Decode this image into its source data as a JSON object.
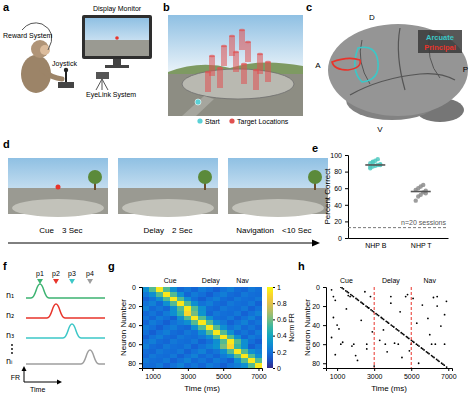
{
  "panel_labels": [
    "a",
    "b",
    "c",
    "d",
    "e",
    "f",
    "g",
    "h"
  ],
  "setup": {
    "reward": "Reward System",
    "monitor": "Display Monitor",
    "joystick": "Joystick",
    "eyelink": "EyeLink System"
  },
  "arena": {
    "start": "Start",
    "targets": "Target Locations"
  },
  "brain": {
    "directions": {
      "dorsal": "D",
      "anterior": "A",
      "posterior": "P",
      "ventral": "V"
    },
    "areas": [
      {
        "name": "Arcuate",
        "color": "#3cc7c7"
      },
      {
        "name": "Principal",
        "color": "#e8342b"
      }
    ]
  },
  "task": {
    "epochs": [
      {
        "name": "Cue",
        "duration": "3 Sec"
      },
      {
        "name": "Delay",
        "duration": "2 Sec"
      },
      {
        "name": "Navigation",
        "duration": "<10 Sec"
      }
    ]
  },
  "schematic": {
    "neurons": [
      "n₁",
      "n₂",
      "n₃",
      "nᵢ"
    ],
    "peaks": [
      "p1",
      "p2",
      "p3",
      "p4"
    ],
    "colors": [
      "#3cb371",
      "#e8342b",
      "#3cc7c7",
      "#9e9e9e"
    ],
    "y_label": "FR",
    "x_label": "Time"
  },
  "chart_data": [
    {
      "type": "scatter",
      "y_label": "Percent Correct",
      "categories": [
        "NHP B",
        "NHP T"
      ],
      "points": [
        [
          84,
          86,
          87,
          88,
          89,
          90,
          91,
          93,
          95,
          88,
          86,
          92
        ],
        [
          45,
          50,
          52,
          55,
          57,
          58,
          60,
          62,
          64,
          54
        ]
      ],
      "colors": [
        "#4fc9c0",
        "#8c8c8c"
      ],
      "means": [
        88,
        56
      ],
      "chance": 12.5,
      "chance_label": "n=20 sessions",
      "ylim": [
        0,
        100
      ],
      "yticks": [
        0,
        20,
        40,
        60,
        80,
        100
      ]
    },
    {
      "type": "heatmap",
      "x_label": "Time (ms)",
      "y_label": "Neuron Number",
      "x_bins": [
        400,
        800,
        1200,
        1600,
        2000,
        2400,
        2800,
        3200,
        3600,
        4000,
        4400,
        4800,
        5200,
        5600,
        6000,
        6400,
        6800,
        7200
      ],
      "y_bins": [
        0,
        5,
        10,
        15,
        20,
        25,
        30,
        35,
        40,
        45,
        50,
        55,
        60,
        65,
        70,
        75,
        80,
        85
      ],
      "cells": [
        [
          0.3,
          0.55,
          0.95,
          0.55,
          0.3,
          0.17,
          0.21,
          0.16,
          0.23,
          0.19,
          0.14,
          0.2,
          0.24,
          0.18,
          0.16,
          0.22,
          0.19
        ],
        [
          0.22,
          0.3,
          0.55,
          0.95,
          0.55,
          0.3,
          0.16,
          0.23,
          0.19,
          0.14,
          0.2,
          0.24,
          0.18,
          0.16,
          0.22,
          0.19,
          0.18
        ],
        [
          0.15,
          0.2,
          0.3,
          0.55,
          0.95,
          0.55,
          0.3,
          0.19,
          0.14,
          0.2,
          0.24,
          0.18,
          0.16,
          0.22,
          0.19,
          0.18,
          0.22
        ],
        [
          0.2,
          0.25,
          0.17,
          0.3,
          0.55,
          0.95,
          0.55,
          0.3,
          0.2,
          0.24,
          0.18,
          0.16,
          0.22,
          0.19,
          0.18,
          0.22,
          0.15
        ],
        [
          0.25,
          0.17,
          0.21,
          0.16,
          0.3,
          0.55,
          0.95,
          0.55,
          0.3,
          0.18,
          0.16,
          0.22,
          0.19,
          0.18,
          0.22,
          0.15,
          0.2
        ],
        [
          0.17,
          0.21,
          0.16,
          0.23,
          0.3,
          0.5,
          0.9,
          0.6,
          0.32,
          0.16,
          0.22,
          0.19,
          0.18,
          0.22,
          0.15,
          0.2,
          0.25
        ],
        [
          0.21,
          0.16,
          0.23,
          0.19,
          0.14,
          0.3,
          0.55,
          0.95,
          0.55,
          0.3,
          0.19,
          0.18,
          0.22,
          0.15,
          0.2,
          0.25,
          0.17
        ],
        [
          0.16,
          0.23,
          0.19,
          0.14,
          0.2,
          0.24,
          0.3,
          0.55,
          0.95,
          0.55,
          0.3,
          0.22,
          0.15,
          0.2,
          0.25,
          0.17,
          0.21
        ],
        [
          0.23,
          0.19,
          0.14,
          0.2,
          0.24,
          0.18,
          0.16,
          0.3,
          0.55,
          0.95,
          0.55,
          0.3,
          0.2,
          0.25,
          0.17,
          0.21,
          0.16
        ],
        [
          0.19,
          0.14,
          0.2,
          0.24,
          0.18,
          0.16,
          0.22,
          0.19,
          0.3,
          0.55,
          0.95,
          0.55,
          0.3,
          0.17,
          0.21,
          0.16,
          0.23
        ],
        [
          0.14,
          0.2,
          0.24,
          0.18,
          0.16,
          0.22,
          0.19,
          0.18,
          0.22,
          0.3,
          0.55,
          0.95,
          0.55,
          0.3,
          0.16,
          0.23,
          0.19
        ],
        [
          0.2,
          0.24,
          0.18,
          0.16,
          0.22,
          0.19,
          0.18,
          0.22,
          0.15,
          0.2,
          0.3,
          0.55,
          0.95,
          0.55,
          0.3,
          0.19,
          0.14
        ],
        [
          0.24,
          0.18,
          0.16,
          0.22,
          0.19,
          0.18,
          0.22,
          0.15,
          0.2,
          0.25,
          0.32,
          0.6,
          0.9,
          0.5,
          0.3,
          0.14,
          0.2
        ],
        [
          0.18,
          0.16,
          0.22,
          0.19,
          0.18,
          0.22,
          0.15,
          0.2,
          0.25,
          0.17,
          0.21,
          0.3,
          0.55,
          0.95,
          0.55,
          0.3,
          0.24
        ],
        [
          0.16,
          0.22,
          0.19,
          0.18,
          0.22,
          0.15,
          0.2,
          0.25,
          0.17,
          0.21,
          0.16,
          0.23,
          0.3,
          0.55,
          0.95,
          0.55,
          0.3
        ],
        [
          0.22,
          0.19,
          0.18,
          0.22,
          0.15,
          0.2,
          0.25,
          0.17,
          0.21,
          0.16,
          0.23,
          0.19,
          0.14,
          0.3,
          0.55,
          0.95,
          0.55
        ],
        [
          0.19,
          0.18,
          0.22,
          0.15,
          0.2,
          0.25,
          0.17,
          0.21,
          0.16,
          0.23,
          0.19,
          0.14,
          0.2,
          0.24,
          0.3,
          0.55,
          0.95
        ]
      ],
      "xlim": [
        400,
        7200
      ],
      "xticks": [
        1000,
        3000,
        5000,
        7000
      ],
      "ylim": [
        0,
        85
      ],
      "yticks": [
        0,
        20,
        40,
        60,
        80
      ],
      "colorbar": {
        "label": "Norm FR",
        "range": [
          0,
          1
        ],
        "ticks": [
          0,
          0.2,
          0.4,
          0.6,
          0.8,
          1
        ]
      },
      "annotations": [
        {
          "text": "Cue",
          "x": 2000
        },
        {
          "text": "Delay",
          "x": 4300
        },
        {
          "text": "Nav",
          "x": 6100
        }
      ]
    },
    {
      "type": "scatter",
      "marker": "dot",
      "x_label": "Time (ms)",
      "y_label": "Neuron Number",
      "x": [
        1200,
        1340,
        1470,
        1610,
        1740,
        1880,
        2020,
        2150,
        2290,
        2420,
        2560,
        2700,
        2830,
        2970,
        3100,
        3240,
        3380,
        3510,
        3650,
        3780,
        3920,
        4060,
        4190,
        4330,
        4460,
        4600,
        4740,
        4870,
        5010,
        5140,
        5280,
        5420,
        5550,
        5690,
        5820,
        5960,
        6100,
        6230,
        6370,
        6500,
        6640,
        6780,
        6910,
        1270,
        1540,
        1810,
        2090,
        2360,
        2630,
        2900,
        3170,
        3440,
        3720,
        3990,
        4260,
        4530,
        4800,
        5080,
        5350,
        5620,
        5890,
        6160,
        6440,
        6710,
        700,
        2500,
        4800,
        6200,
        900,
        3900,
        5600,
        1500,
        4400,
        6800,
        800,
        2300,
        5300,
        6600,
        1100,
        2900,
        6000,
        700,
        3300,
        4100,
        1800,
        2600,
        3700,
        900,
        4500,
        2100,
        5400,
        3000,
        1600,
        6900,
        2700,
        5900,
        3500,
        1300,
        4900,
        6400,
        2000,
        5100,
        1000,
        6300,
        1200,
        1900,
        2600,
        3600,
        4300,
        5000,
        6100,
        6800,
        800,
        1700,
        2800,
        3900,
        4700,
        6400
      ],
      "values": [
        0,
        2,
        4,
        6,
        8,
        10,
        12,
        14,
        16,
        18,
        20,
        22,
        24,
        26,
        28,
        30,
        32,
        34,
        36,
        38,
        40,
        42,
        44,
        46,
        48,
        50,
        52,
        54,
        56,
        58,
        60,
        62,
        64,
        66,
        68,
        70,
        72,
        74,
        76,
        78,
        80,
        82,
        84,
        1,
        5,
        9,
        13,
        17,
        21,
        25,
        29,
        33,
        37,
        41,
        45,
        49,
        53,
        57,
        61,
        65,
        69,
        73,
        77,
        81,
        3,
        5,
        8,
        11,
        14,
        17,
        19,
        23,
        26,
        29,
        32,
        35,
        38,
        41,
        44,
        47,
        50,
        53,
        56,
        59,
        62,
        65,
        68,
        71,
        74,
        77,
        80,
        83,
        9,
        15,
        22,
        33,
        45,
        58,
        67,
        20,
        72,
        12,
        40,
        60,
        60,
        60,
        60,
        60,
        60,
        60,
        60,
        60,
        10,
        10,
        10,
        10,
        10,
        10
      ],
      "xlim": [
        400,
        7200
      ],
      "xticks": [
        1000,
        3000,
        5000,
        7000
      ],
      "ylim": [
        0,
        85
      ],
      "yticks": [
        0,
        20,
        40,
        60,
        80
      ],
      "event_lines": [
        3000,
        5000
      ],
      "annotations": [
        {
          "text": "Cue",
          "x": 1500
        },
        {
          "text": "Delay",
          "x": 3900
        },
        {
          "text": "Nav",
          "x": 6000
        }
      ]
    }
  ]
}
